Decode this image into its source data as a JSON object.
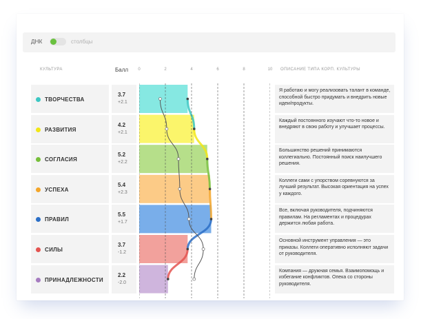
{
  "toolbar": {
    "label": "ДНК",
    "toggle_alt_label": "столбцы",
    "toggle_color": "#6ac13f"
  },
  "headers": {
    "culture": "КУЛЬТУРА",
    "score": "Балл",
    "description": "ОПИСАНИЕ ТИПА КОРП. КУЛЬТУРЫ"
  },
  "scale_ticks": [
    "0",
    "2",
    "4",
    "6",
    "8",
    "10"
  ],
  "rows": [
    {
      "name": "ТВОРЧЕСТВА",
      "color": "#3cc7c3",
      "fill": "#86e8e2",
      "score": "3.7",
      "delta": "+2.1",
      "value": 3.7,
      "prev": 1.6,
      "description": "Я работаю и могу реализовать талант в команде, способной быстро придумать и внедрить новые идеи/продукты."
    },
    {
      "name": "РАЗВИТИЯ",
      "color": "#f2e616",
      "fill": "#fbf56b",
      "score": "4.2",
      "delta": "+2.1",
      "value": 4.2,
      "prev": 2.1,
      "description": "Каждый постоянного изучают что-то новое и внедряют в свою работу и улучшает процессы."
    },
    {
      "name": "СОГЛАСИЯ",
      "color": "#76bf3a",
      "fill": "#b6df8a",
      "score": "5.2",
      "delta": "+2.2",
      "value": 5.2,
      "prev": 3.0,
      "description": "Большинство решений принимаются коллегиально. Постоянный поиск наилучшего решения."
    },
    {
      "name": "УСПЕХА",
      "color": "#f3a62a",
      "fill": "#fccb87",
      "score": "5.4",
      "delta": "+2.3",
      "value": 5.4,
      "prev": 3.1,
      "description": "Коллеги сами с упорством соревнуются за лучший результат. Высокая ориентация на успех у каждого."
    },
    {
      "name": "ПРАВИЛ",
      "color": "#2b6fc7",
      "fill": "#79aeea",
      "score": "5.5",
      "delta": "+1.7",
      "value": 5.5,
      "prev": 3.8,
      "description": "Все, включая руководителя, подчиняются правилам. На регламентах и процедурах держится любая работа."
    },
    {
      "name": "СИЛЫ",
      "color": "#e45450",
      "fill": "#f2a19c",
      "score": "3.7",
      "delta": "-1.2",
      "value": 3.7,
      "prev": 4.9,
      "description": "Основной инструмент управления — это приказы. Коллеги оперативно исполняют задачи от руководителя."
    },
    {
      "name": "ПРИНАДЛЕЖНОСТИ",
      "color": "#a67cc0",
      "fill": "#cfb5dd",
      "score": "2.2",
      "delta": "-2.0",
      "value": 2.2,
      "prev": 4.2,
      "description": "Компания — дружная семья. Взаимопомощь и избегание конфликтов. Опека со стороны руководителя."
    }
  ],
  "chart_data": {
    "type": "bar",
    "orientation": "horizontal",
    "categories": [
      "ТВОРЧЕСТВА",
      "РАЗВИТИЯ",
      "СОГЛАСИЯ",
      "УСПЕХА",
      "ПРАВИЛ",
      "СИЛЫ",
      "ПРИНАДЛЕЖНОСТИ"
    ],
    "series": [
      {
        "values": [
          3.7,
          4.2,
          5.2,
          5.4,
          5.5,
          3.7,
          2.2
        ]
      },
      {
        "values": [
          1.6,
          2.1,
          3.0,
          3.1,
          3.8,
          4.9,
          4.2
        ]
      }
    ],
    "xlim": [
      0,
      10
    ],
    "x_ticks": [
      0,
      2,
      4,
      6,
      8,
      10
    ]
  }
}
